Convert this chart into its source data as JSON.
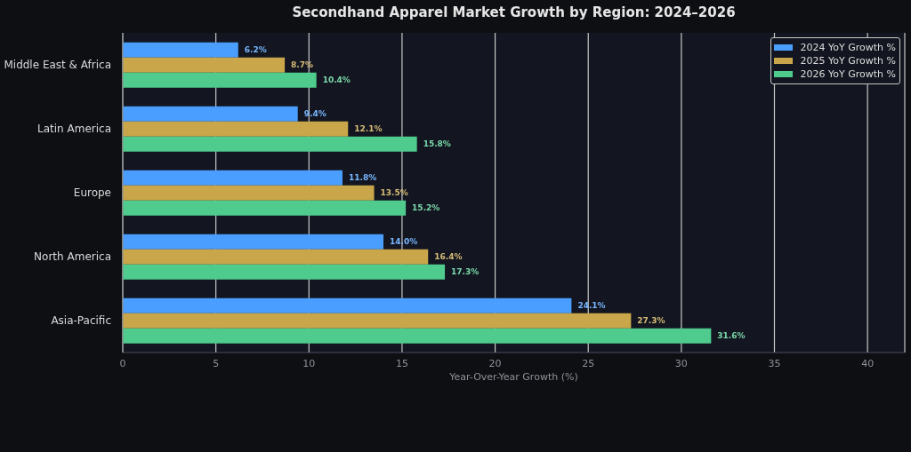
{
  "chart_data": {
    "type": "bar",
    "orientation": "horizontal",
    "title": "Secondhand Apparel Market Growth by Region: 2024–2026",
    "xlabel": "Year-Over-Year Growth (%)",
    "categories": [
      "Middle East & Africa",
      "Latin America",
      "Europe",
      "North America",
      "Asia-Pacific"
    ],
    "series": [
      {
        "name": "2024 YoY Growth %",
        "color": "#4a9eff",
        "values": [
          6.2,
          9.4,
          11.8,
          14.0,
          24.1
        ],
        "value_labels": [
          "6.2%",
          "9.4%",
          "11.8%",
          "14.0%",
          "24.1%"
        ]
      },
      {
        "name": "2025 YoY Growth %",
        "color": "#c9a64a",
        "values": [
          8.7,
          12.1,
          13.5,
          16.4,
          27.3
        ],
        "value_labels": [
          "8.7%",
          "12.1%",
          "13.5%",
          "16.4%",
          "27.3%"
        ]
      },
      {
        "name": "2026 YoY Growth %",
        "color": "#4ecb8d",
        "values": [
          10.4,
          15.8,
          15.2,
          17.3,
          31.6
        ],
        "value_labels": [
          "10.4%",
          "15.8%",
          "15.2%",
          "17.3%",
          "31.6%"
        ]
      }
    ],
    "xlim": [
      0,
      42
    ],
    "xticks": [
      0,
      5,
      10,
      15,
      20,
      25,
      30,
      35,
      40
    ],
    "grid": "x",
    "legend": "top right"
  }
}
